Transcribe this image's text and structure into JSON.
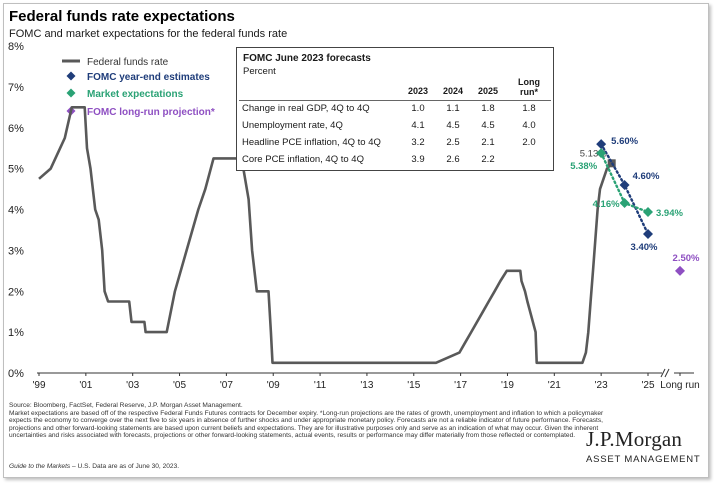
{
  "header": {
    "title": "Federal funds rate expectations",
    "subtitle": "FOMC and market expectations for the federal funds rate"
  },
  "chart_data": {
    "type": "line",
    "title": "Federal funds rate expectations",
    "subtitle": "FOMC and market expectations for the federal funds rate",
    "ylim": [
      0,
      8
    ],
    "y_ticks": [
      "0%",
      "1%",
      "2%",
      "3%",
      "4%",
      "5%",
      "6%",
      "7%",
      "8%"
    ],
    "x_ticks": [
      "'99",
      "'01",
      "'03",
      "'05",
      "'07",
      "'09",
      "'11",
      "'13",
      "'15",
      "'17",
      "'19",
      "'21",
      "'23",
      "'25",
      "Long run"
    ],
    "grid": false,
    "legend_position": "top-left",
    "legend": [
      {
        "label": "Federal funds rate",
        "marker": "line",
        "color": "#595959"
      },
      {
        "label": "FOMC year-end estimates",
        "marker": "diamond",
        "color": "#1f3d7a"
      },
      {
        "label": "Market expectations",
        "marker": "diamond",
        "color": "#2aa275"
      },
      {
        "label": "FOMC long-run projection*",
        "marker": "diamond",
        "color": "#8e4fc2"
      }
    ],
    "series": [
      {
        "name": "Federal funds rate",
        "color": "#595959",
        "points": [
          [
            1999.0,
            4.75
          ],
          [
            1999.5,
            5.0
          ],
          [
            1999.9,
            5.5
          ],
          [
            2000.1,
            5.75
          ],
          [
            2000.2,
            6.0
          ],
          [
            2000.4,
            6.5
          ],
          [
            2000.95,
            6.5
          ],
          [
            2001.05,
            5.5
          ],
          [
            2001.2,
            5.0
          ],
          [
            2001.4,
            4.0
          ],
          [
            2001.55,
            3.75
          ],
          [
            2001.7,
            3.0
          ],
          [
            2001.8,
            2.0
          ],
          [
            2001.95,
            1.75
          ],
          [
            2002.85,
            1.75
          ],
          [
            2002.95,
            1.25
          ],
          [
            2003.5,
            1.25
          ],
          [
            2003.55,
            1.0
          ],
          [
            2004.45,
            1.0
          ],
          [
            2004.8,
            2.0
          ],
          [
            2005.3,
            3.0
          ],
          [
            2005.8,
            4.0
          ],
          [
            2006.1,
            4.5
          ],
          [
            2006.45,
            5.25
          ],
          [
            2007.65,
            5.25
          ],
          [
            2007.8,
            4.75
          ],
          [
            2007.95,
            4.25
          ],
          [
            2008.1,
            3.0
          ],
          [
            2008.3,
            2.0
          ],
          [
            2008.8,
            2.0
          ],
          [
            2008.85,
            1.5
          ],
          [
            2008.9,
            1.0
          ],
          [
            2008.97,
            0.25
          ],
          [
            2015.95,
            0.25
          ],
          [
            2016.95,
            0.5
          ],
          [
            2017.2,
            0.75
          ],
          [
            2017.45,
            1.0
          ],
          [
            2017.95,
            1.5
          ],
          [
            2018.2,
            1.75
          ],
          [
            2018.45,
            2.0
          ],
          [
            2018.7,
            2.25
          ],
          [
            2018.97,
            2.5
          ],
          [
            2019.55,
            2.5
          ],
          [
            2019.6,
            2.25
          ],
          [
            2019.75,
            2.0
          ],
          [
            2019.85,
            1.75
          ],
          [
            2020.2,
            1.0
          ],
          [
            2020.25,
            0.25
          ],
          [
            2022.2,
            0.25
          ],
          [
            2022.35,
            0.5
          ],
          [
            2022.45,
            1.0
          ],
          [
            2022.55,
            1.75
          ],
          [
            2022.65,
            2.5
          ],
          [
            2022.75,
            3.25
          ],
          [
            2022.85,
            4.0
          ],
          [
            2022.95,
            4.5
          ],
          [
            2023.1,
            4.75
          ],
          [
            2023.25,
            5.0
          ],
          [
            2023.45,
            5.13
          ]
        ]
      },
      {
        "name": "FOMC year-end estimates",
        "color": "#1f3d7a",
        "points": [
          [
            2023.0,
            5.6
          ],
          [
            2024.0,
            4.6
          ],
          [
            2025.0,
            3.4
          ]
        ],
        "labels": [
          "5.60%",
          "4.60%",
          "3.40%"
        ]
      },
      {
        "name": "Market expectations",
        "color": "#2aa275",
        "points": [
          [
            2023.0,
            5.38
          ],
          [
            2024.0,
            4.16
          ],
          [
            2025.0,
            3.94
          ]
        ],
        "labels": [
          "5.38%",
          "4.16%",
          "3.94%"
        ]
      },
      {
        "name": "FOMC long-run projection*",
        "color": "#8e4fc2",
        "points": [
          [
            "Long run",
            2.5
          ]
        ],
        "labels": [
          "2.50%"
        ]
      }
    ],
    "annotations": [
      {
        "text": "5.13%",
        "x": 2023.45,
        "y": 5.13
      }
    ]
  },
  "forecast_table": {
    "title": "FOMC June 2023 forecasts",
    "unit": "Percent",
    "columns": [
      "2023",
      "2024",
      "2025",
      "Long run*"
    ],
    "rows": [
      {
        "label": "Change in real GDP, 4Q to 4Q",
        "values": [
          "1.0",
          "1.1",
          "1.8",
          "1.8"
        ]
      },
      {
        "label": "Unemployment rate, 4Q",
        "values": [
          "4.1",
          "4.5",
          "4.5",
          "4.0"
        ]
      },
      {
        "label": "Headline PCE inflation, 4Q to 4Q",
        "values": [
          "3.2",
          "2.5",
          "2.1",
          "2.0"
        ]
      },
      {
        "label": "Core PCE inflation, 4Q to 4Q",
        "values": [
          "3.9",
          "2.6",
          "2.2",
          ""
        ]
      }
    ]
  },
  "footer": {
    "source": "Source: Bloomberg, FactSet, Federal Reserve, J.P. Morgan Asset Management.",
    "notes": "Market expectations are based off of the respective Federal Funds Futures contracts for December expiry. *Long-run projections are the rates of growth, unemployment and inflation to which a policymaker expects the economy to converge over the next five to six years in absence of further shocks and under appropriate monetary policy. Forecasts are not a reliable indicator of future performance. Forecasts, projections and other forward-looking statements are based upon current beliefs and expectations. They are for illustrative purposes only and serve as an indication of what may occur. Given the inherent uncertainties and risks associated with forecasts, projections or other forward-looking statements, actual events, results or performance may differ materially from those reflected or contemplated.",
    "guide_title": "Guide to the Markets",
    "guide_rest": " – U.S. Data are as of June 30, 2023.",
    "logo_main": "J.P.Morgan",
    "logo_sub": "ASSET MANAGEMENT"
  }
}
